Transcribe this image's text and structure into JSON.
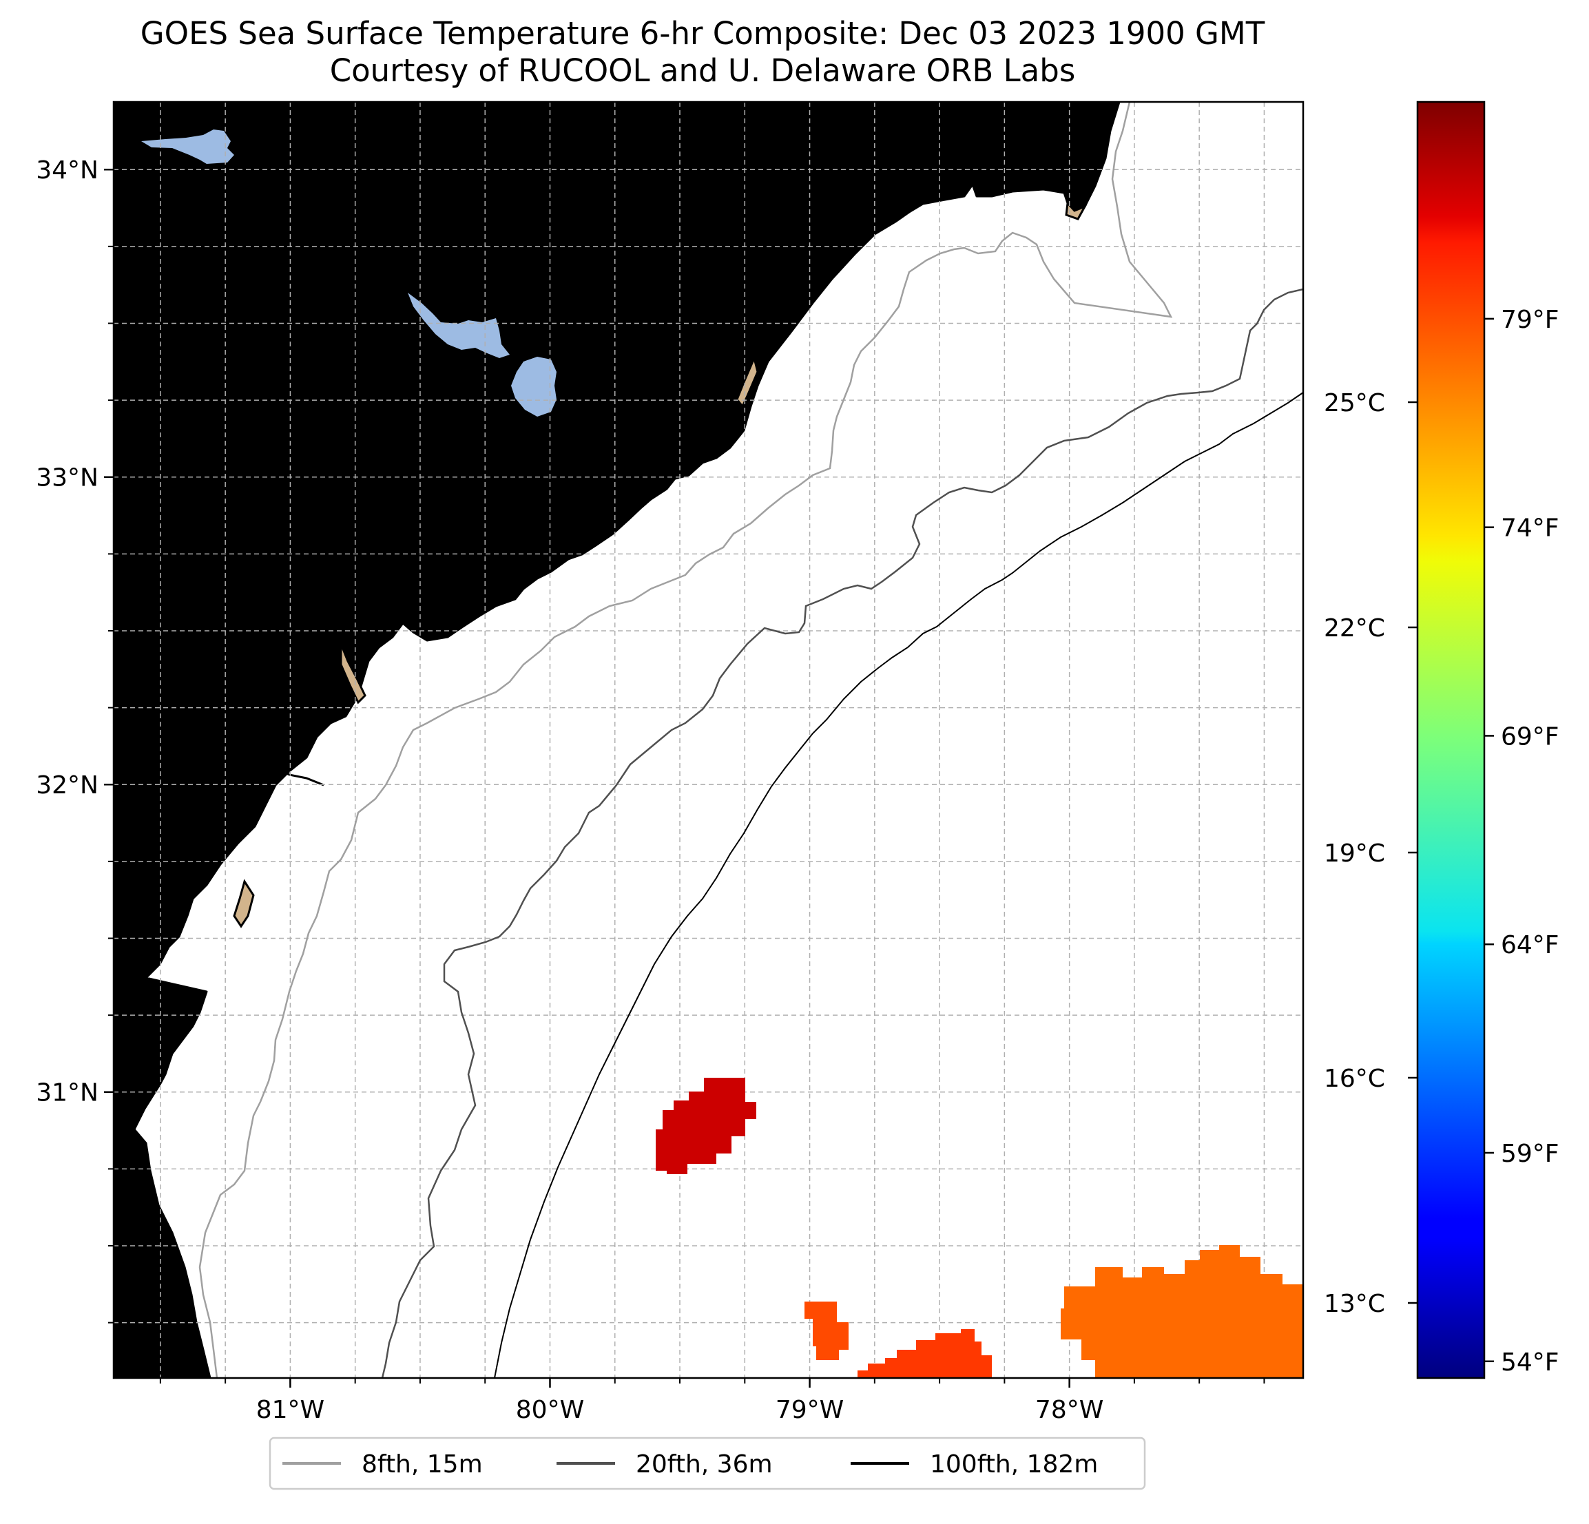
{
  "title": {
    "line1": "GOES Sea Surface Temperature 6-hr Composite: Dec 03 2023 1900 GMT",
    "line2": "Courtesy of RUCOOL and U. Delaware ORB Labs"
  },
  "map": {
    "lon_range": [
      -81.68,
      -77.1
    ],
    "lat_range": [
      30.07,
      34.22
    ],
    "lat_ticks": [
      {
        "value": 34,
        "label": "34°N"
      },
      {
        "value": 33,
        "label": "33°N"
      },
      {
        "value": 32,
        "label": "32°N"
      },
      {
        "value": 31,
        "label": "31°N"
      }
    ],
    "lon_ticks": [
      {
        "value": -81,
        "label": "81°W"
      },
      {
        "value": -80,
        "label": "80°W"
      },
      {
        "value": -79,
        "label": "79°W"
      },
      {
        "value": -78,
        "label": "78°W"
      }
    ],
    "colors": {
      "land": "#d2b48c",
      "lakes": "#9dbbe3",
      "coast": "#000000",
      "grid": "#b0b0b0",
      "iso_8": "#a0a0a0",
      "iso_20": "#505050",
      "iso_100": "#000000",
      "sst_patch_1": "#cc0000",
      "sst_patch_2": "#ff4a00",
      "sst_patch_3": "#ff3800",
      "sst_patch_4": "#ff6a00"
    },
    "sst_patches": [
      {
        "name": "sst-patch-central",
        "temp_f": 80.5
      },
      {
        "name": "sst-patch-south",
        "temp_f": 78.0
      },
      {
        "name": "sst-patch-southeast",
        "temp_f": 78.5
      },
      {
        "name": "sst-patch-east",
        "temp_f": 77.5
      }
    ]
  },
  "colorbar": {
    "cmap": "jet",
    "c_ticks": [
      "25°C",
      "22°C",
      "19°C",
      "16°C",
      "13°C"
    ],
    "f_ticks": [
      "79°F",
      "74°F",
      "69°F",
      "64°F",
      "59°F",
      "54°F"
    ]
  },
  "legend": {
    "items": [
      {
        "label": "8fth, 15m",
        "color": "#a0a0a0"
      },
      {
        "label": "20fth, 36m",
        "color": "#505050"
      },
      {
        "label": "100fth, 182m",
        "color": "#000000"
      }
    ]
  }
}
